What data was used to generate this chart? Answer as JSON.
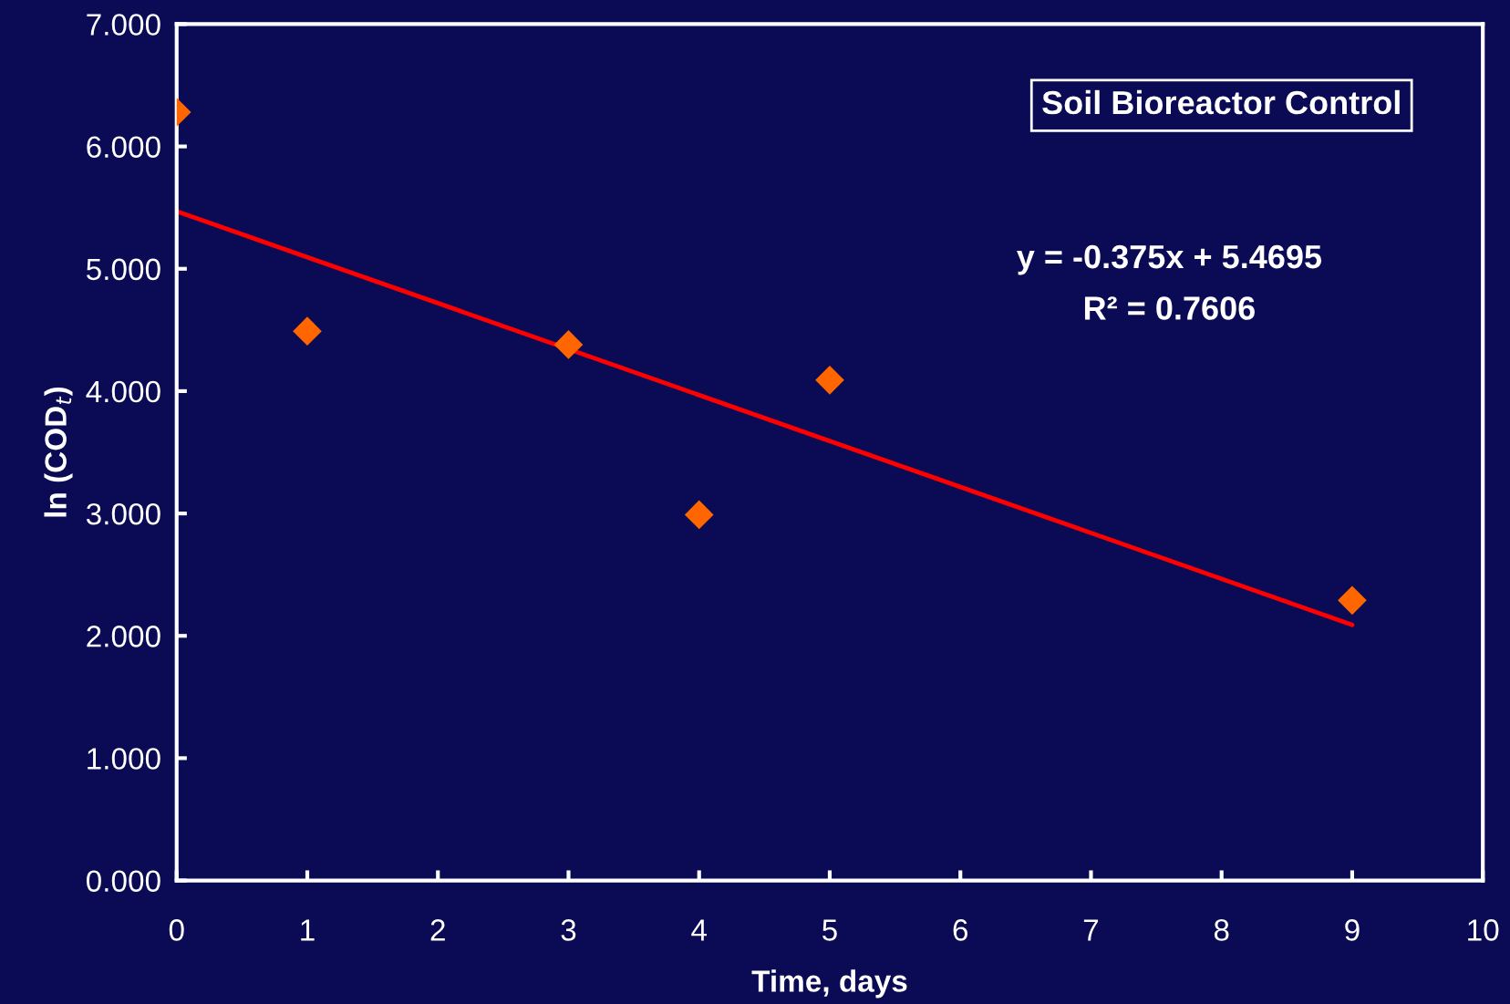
{
  "chart_data": {
    "type": "scatter",
    "xlabel": "Time, days",
    "ylabel": "ln (COD$_{t}$)",
    "annotations": [
      "Soil Bioreactor Control",
      "y = -0.375x + 5.4695",
      "R² = 0.7606"
    ],
    "series": [
      {
        "type": "scatter",
        "color": "#ff6600",
        "marker": "diamond",
        "x": [
          0,
          1,
          3,
          4,
          5,
          9
        ],
        "values": [
          6.28,
          4.49,
          4.38,
          2.99,
          4.09,
          2.29
        ]
      },
      {
        "type": "line",
        "color": "#ff0000",
        "marker": "none",
        "line_style": "solid",
        "x": [
          0,
          9
        ],
        "values": [
          5.47,
          2.09
        ]
      }
    ],
    "xlim": [
      0,
      10
    ],
    "xticks": [
      0,
      1,
      2,
      3,
      4,
      5,
      6,
      7,
      8,
      9,
      10
    ],
    "ylim": [
      0,
      7
    ],
    "yticks": [
      {
        "value": 0,
        "label": "0.000"
      },
      {
        "value": 1,
        "label": "1.000"
      },
      {
        "value": 2,
        "label": "2.000"
      },
      {
        "value": 3,
        "label": "3.000"
      },
      {
        "value": 4,
        "label": "4.000"
      },
      {
        "value": 5,
        "label": "5.000"
      },
      {
        "value": 6,
        "label": "6.000"
      },
      {
        "value": 7,
        "label": "7.000"
      }
    ],
    "grid": false,
    "legend": false
  }
}
